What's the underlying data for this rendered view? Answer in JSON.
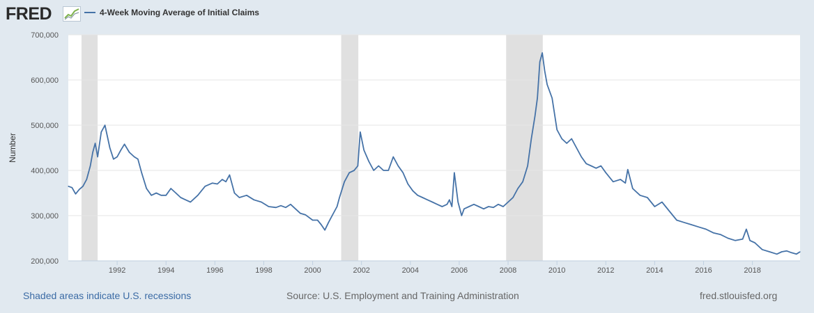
{
  "header": {
    "logo_text": "FRED",
    "logo_icon": "chart-line-icon"
  },
  "legend": {
    "label": "4-Week Moving Average of Initial Claims"
  },
  "footer": {
    "recession_note": "Shaded areas indicate U.S. recessions",
    "source": "Source: U.S. Employment and Training Administration",
    "site": "fred.stlouisfed.org"
  },
  "colors": {
    "line": "#4572a7",
    "recession": "#e0e0e0",
    "background": "#e1e9f0",
    "plot": "#ffffff"
  },
  "chart_data": {
    "type": "line",
    "ylabel": "Number",
    "xlabel": "",
    "xlim": [
      1990.0,
      2019.95
    ],
    "ylim": [
      200000,
      700000
    ],
    "y_ticks": [
      200000,
      300000,
      400000,
      500000,
      600000,
      700000
    ],
    "y_tick_labels": [
      "200,000",
      "300,000",
      "400,000",
      "500,000",
      "600,000",
      "700,000"
    ],
    "x_ticks": [
      1992,
      1994,
      1996,
      1998,
      2000,
      2002,
      2004,
      2006,
      2008,
      2010,
      2012,
      2014,
      2016,
      2018
    ],
    "grid": true,
    "recessions": [
      [
        1990.54,
        1991.2
      ],
      [
        2001.17,
        2001.87
      ],
      [
        2007.92,
        2009.42
      ]
    ],
    "series": [
      {
        "x": [
          1990.0,
          1990.15,
          1990.3,
          1990.45,
          1990.6,
          1990.75,
          1990.9,
          1991.0,
          1991.1,
          1991.2,
          1991.35,
          1991.5,
          1991.7,
          1991.85,
          1992.0,
          1992.15,
          1992.3,
          1992.5,
          1992.7,
          1992.85,
          1993.0,
          1993.2,
          1993.4,
          1993.6,
          1993.8,
          1994.0,
          1994.2,
          1994.4,
          1994.6,
          1994.8,
          1995.0,
          1995.3,
          1995.6,
          1995.9,
          1996.1,
          1996.3,
          1996.45,
          1996.6,
          1996.8,
          1997.0,
          1997.3,
          1997.6,
          1997.9,
          1998.2,
          1998.5,
          1998.7,
          1998.9,
          1999.1,
          1999.3,
          1999.5,
          1999.7,
          2000.0,
          2000.2,
          2000.35,
          2000.5,
          2000.65,
          2000.8,
          2001.0,
          2001.1,
          2001.3,
          2001.5,
          2001.7,
          2001.85,
          2001.95,
          2002.1,
          2002.3,
          2002.5,
          2002.7,
          2002.9,
          2003.1,
          2003.3,
          2003.5,
          2003.7,
          2003.9,
          2004.1,
          2004.3,
          2004.5,
          2004.7,
          2004.9,
          2005.1,
          2005.3,
          2005.5,
          2005.6,
          2005.7,
          2005.8,
          2005.95,
          2006.1,
          2006.2,
          2006.4,
          2006.6,
          2006.8,
          2007.0,
          2007.2,
          2007.4,
          2007.6,
          2007.8,
          2008.0,
          2008.2,
          2008.4,
          2008.6,
          2008.8,
          2008.95,
          2009.1,
          2009.2,
          2009.3,
          2009.4,
          2009.5,
          2009.6,
          2009.8,
          2010.0,
          2010.2,
          2010.4,
          2010.6,
          2010.8,
          2011.0,
          2011.2,
          2011.4,
          2011.6,
          2011.8,
          2012.0,
          2012.3,
          2012.6,
          2012.8,
          2012.9,
          2013.1,
          2013.4,
          2013.7,
          2014.0,
          2014.3,
          2014.6,
          2014.9,
          2015.2,
          2015.5,
          2015.8,
          2016.1,
          2016.4,
          2016.7,
          2017.0,
          2017.3,
          2017.6,
          2017.75,
          2017.9,
          2018.1,
          2018.4,
          2018.7,
          2019.0,
          2019.2,
          2019.4,
          2019.6,
          2019.8,
          2019.95
        ],
        "values": [
          365000,
          362000,
          348000,
          358000,
          365000,
          380000,
          410000,
          440000,
          460000,
          430000,
          485000,
          500000,
          450000,
          425000,
          430000,
          445000,
          458000,
          440000,
          430000,
          425000,
          395000,
          360000,
          345000,
          350000,
          345000,
          345000,
          360000,
          350000,
          340000,
          335000,
          330000,
          345000,
          365000,
          372000,
          370000,
          380000,
          375000,
          390000,
          350000,
          340000,
          345000,
          335000,
          330000,
          320000,
          318000,
          322000,
          318000,
          325000,
          315000,
          305000,
          302000,
          290000,
          290000,
          280000,
          268000,
          285000,
          300000,
          320000,
          340000,
          375000,
          395000,
          400000,
          410000,
          485000,
          445000,
          420000,
          400000,
          410000,
          400000,
          400000,
          430000,
          410000,
          395000,
          370000,
          355000,
          345000,
          340000,
          335000,
          330000,
          325000,
          320000,
          325000,
          335000,
          320000,
          395000,
          330000,
          300000,
          315000,
          320000,
          325000,
          320000,
          315000,
          320000,
          318000,
          325000,
          320000,
          330000,
          340000,
          360000,
          375000,
          410000,
          470000,
          520000,
          560000,
          640000,
          660000,
          620000,
          590000,
          560000,
          490000,
          470000,
          460000,
          470000,
          450000,
          430000,
          415000,
          410000,
          405000,
          410000,
          395000,
          375000,
          380000,
          372000,
          402000,
          360000,
          345000,
          340000,
          320000,
          330000,
          310000,
          290000,
          285000,
          280000,
          275000,
          270000,
          262000,
          258000,
          250000,
          245000,
          248000,
          270000,
          245000,
          240000,
          225000,
          220000,
          215000,
          220000,
          222000,
          218000,
          215000,
          220000
        ]
      }
    ]
  }
}
